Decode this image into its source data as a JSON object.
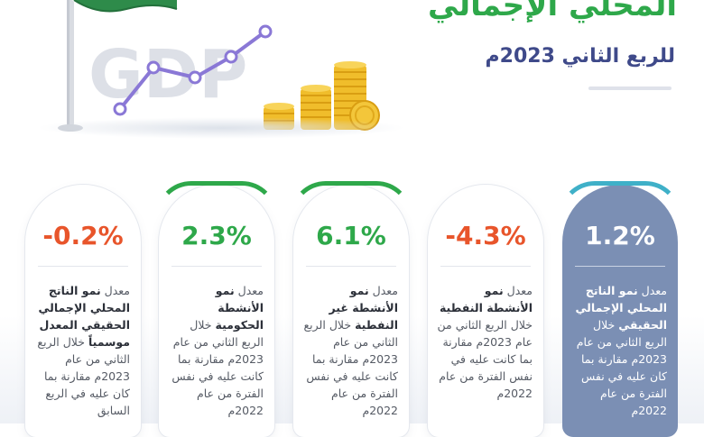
{
  "header": {
    "title": "المحلي الإجمالي",
    "subtitle": "للربع الثاني 2023م"
  },
  "hero": {
    "gdp_text": "GDP",
    "flag_color": "#2e8b4a",
    "line_color": "#8a78d6",
    "coin_color": "#f2c230"
  },
  "colors": {
    "negative": "#e8552b",
    "positive": "#2ea84a",
    "featured_bg": "#7b8fb4"
  },
  "cards": [
    {
      "value": "-0.2%",
      "pre": "معدل ",
      "bold": "نمو الناتج المحلي الإجمالي الحقيقي المعدل موسمياً",
      "post": " خلال الربع الثاني من عام 2023م مقارنة بما كان عليه في الربع السابق"
    },
    {
      "value": "2.3%",
      "pre": "معدل ",
      "bold": "نمو الأنشطة الحكومية",
      "post": " خلال الربع الثاني من عام 2023م مقارنة بما كانت عليه في نفس الفترة من عام 2022م"
    },
    {
      "value": "6.1%",
      "pre": "معدل ",
      "bold": "نمو الأنشطة غير النفطية",
      "post": " خلال الربع الثاني من عام 2023م مقارنة بما كانت عليه في نفس الفترة من عام 2022م"
    },
    {
      "value": "-4.3%",
      "pre": "معدل ",
      "bold": "نمو الأنشطة النفطية",
      "post": " خلال الربع الثاني من عام 2023م مقارنة بما كانت عليه في نفس الفترة من عام 2022م"
    },
    {
      "value": "1.2%",
      "pre": "معدل ",
      "bold": "نمو الناتج المحلي الإجمالي الحقيقي",
      "post": " خلال الربع الثاني من عام 2023م مقارنة بما كان عليه في نفس الفترة من عام 2022م"
    }
  ]
}
